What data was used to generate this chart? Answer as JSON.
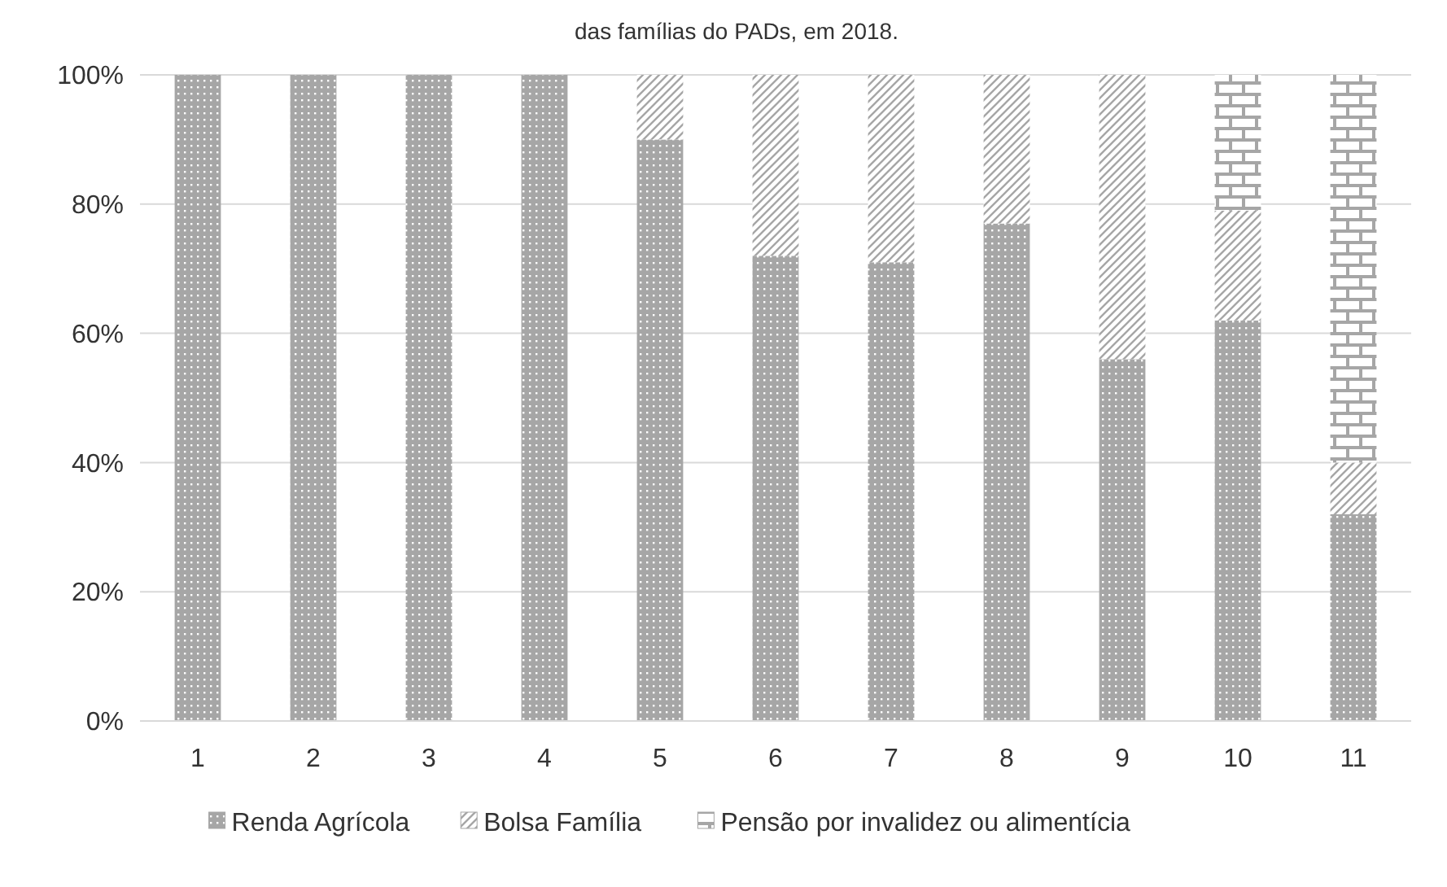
{
  "chart_data": {
    "type": "bar",
    "title": "das famílias do PADs, em 2018.",
    "stacked": true,
    "categories": [
      "1",
      "2",
      "3",
      "4",
      "5",
      "6",
      "7",
      "8",
      "9",
      "10",
      "11"
    ],
    "series": [
      {
        "name": "Renda Agrícola",
        "color": "#a6a6a6",
        "values": [
          100,
          100,
          100,
          100,
          90,
          72,
          71,
          77,
          56,
          62,
          32
        ]
      },
      {
        "name": "Bolsa Família",
        "color": "#a6a6a6",
        "values": [
          0,
          0,
          0,
          0,
          10,
          28,
          29,
          23,
          44,
          17,
          8
        ]
      },
      {
        "name": "Pensão por invalidez ou alimentícia",
        "color": "#a6a6a6",
        "values": [
          0,
          0,
          0,
          0,
          0,
          0,
          0,
          0,
          0,
          21,
          60
        ]
      }
    ],
    "ylim": [
      0,
      100
    ],
    "yticks": [
      {
        "value": 0,
        "label": "0%"
      },
      {
        "value": 20,
        "label": "20%"
      },
      {
        "value": 40,
        "label": "40%"
      },
      {
        "value": 60,
        "label": "60%"
      },
      {
        "value": 80,
        "label": "80%"
      },
      {
        "value": 100,
        "label": "100%"
      }
    ],
    "grid": "y",
    "legend": "bottom"
  }
}
